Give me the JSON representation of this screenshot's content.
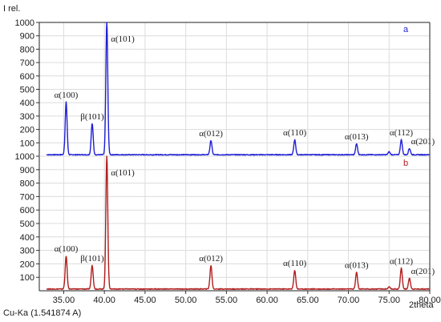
{
  "chart_data": [
    {
      "type": "line",
      "panel_label": "a",
      "y_axis_title": "I rel.",
      "x_axis_title": "",
      "xlim": [
        32.0,
        80.0
      ],
      "ylim": [
        0,
        1000
      ],
      "yticks": [
        100,
        200,
        300,
        400,
        500,
        600,
        700,
        800,
        900,
        1000
      ],
      "grid": true,
      "color": "#1f1fd6",
      "baseline": 8,
      "peaks": [
        {
          "x": 35.3,
          "y": 400,
          "label": "α(100)"
        },
        {
          "x": 38.5,
          "y": 240,
          "label": "β(101)"
        },
        {
          "x": 40.3,
          "y": 1000,
          "label": "α(101)"
        },
        {
          "x": 53.1,
          "y": 115,
          "label": "α(012)"
        },
        {
          "x": 63.4,
          "y": 120,
          "label": "α(110)"
        },
        {
          "x": 71.0,
          "y": 90,
          "label": "α(013)"
        },
        {
          "x": 76.5,
          "y": 120,
          "label": "α(112)"
        },
        {
          "x": 77.5,
          "y": 55,
          "label": "α(201)"
        },
        {
          "x": 75.0,
          "y": 30,
          "label": ""
        }
      ]
    },
    {
      "type": "line",
      "panel_label": "b",
      "y_axis_title": "",
      "x_axis_title": "2theta",
      "xlim": [
        32.0,
        80.0
      ],
      "ylim": [
        0,
        1000
      ],
      "yticks": [
        100,
        200,
        300,
        400,
        500,
        600,
        700,
        800,
        900,
        1000
      ],
      "xticks": [
        35.0,
        40.0,
        45.0,
        50.0,
        55.0,
        60.0,
        65.0,
        70.0,
        75.0,
        80.0
      ],
      "grid": true,
      "color": "#b01e1e",
      "baseline": 10,
      "peaks": [
        {
          "x": 35.3,
          "y": 255,
          "label": "α(100)"
        },
        {
          "x": 38.5,
          "y": 185,
          "label": "β(101)"
        },
        {
          "x": 40.3,
          "y": 1000,
          "label": "α(101)"
        },
        {
          "x": 53.1,
          "y": 185,
          "label": "α(012)"
        },
        {
          "x": 63.4,
          "y": 150,
          "label": "α(110)"
        },
        {
          "x": 71.0,
          "y": 135,
          "label": "α(013)"
        },
        {
          "x": 76.5,
          "y": 165,
          "label": "α(112)"
        },
        {
          "x": 77.5,
          "y": 90,
          "label": "α(201)"
        },
        {
          "x": 75.0,
          "y": 25,
          "label": ""
        }
      ]
    }
  ],
  "footer": {
    "radiation": "Cu-Ka (1.541874 A)"
  }
}
